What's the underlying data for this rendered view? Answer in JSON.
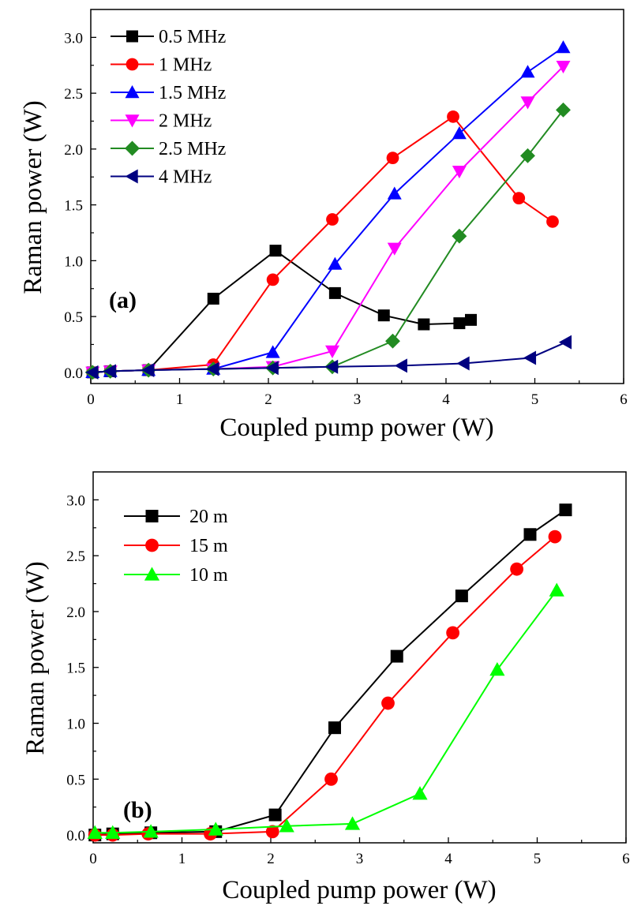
{
  "chart_data": [
    {
      "type": "line",
      "panel_label": "(a)",
      "xlabel": "Coupled pump power (W)",
      "ylabel": "Raman power (W)",
      "xlim": [
        0,
        6
      ],
      "ylim": [
        -0.1,
        3.25
      ],
      "xticks": [
        0,
        1,
        2,
        3,
        4,
        5,
        6
      ],
      "yticks": [
        0.0,
        0.5,
        1.0,
        1.5,
        2.0,
        2.5,
        3.0
      ],
      "legend_position": "top-left",
      "series": [
        {
          "name": "0.5 MHz",
          "color": "#000000",
          "marker": "square",
          "x": [
            0.02,
            0.22,
            0.65,
            1.38,
            2.08,
            2.75,
            3.3,
            3.75,
            4.15,
            4.28
          ],
          "y": [
            0.0,
            0.01,
            0.02,
            0.66,
            1.09,
            0.71,
            0.51,
            0.43,
            0.44,
            0.47
          ]
        },
        {
          "name": "1 MHz",
          "color": "#ff0000",
          "marker": "circle",
          "x": [
            0.02,
            0.22,
            0.65,
            1.38,
            2.05,
            2.72,
            3.4,
            4.08,
            4.82,
            5.2
          ],
          "y": [
            0.0,
            0.01,
            0.02,
            0.07,
            0.83,
            1.37,
            1.92,
            2.29,
            1.56,
            1.35
          ]
        },
        {
          "name": "1.5 MHz",
          "color": "#0000ff",
          "marker": "triangle-up",
          "x": [
            0.02,
            0.22,
            0.65,
            1.38,
            2.05,
            2.75,
            3.42,
            4.15,
            4.92,
            5.32
          ],
          "y": [
            0.0,
            0.01,
            0.02,
            0.03,
            0.18,
            0.97,
            1.6,
            2.14,
            2.69,
            2.91
          ]
        },
        {
          "name": "2 MHz",
          "color": "#ff00ff",
          "marker": "triangle-down",
          "x": [
            0.02,
            0.22,
            0.65,
            1.38,
            2.05,
            2.72,
            3.42,
            4.15,
            4.92,
            5.32
          ],
          "y": [
            0.0,
            0.01,
            0.02,
            0.03,
            0.05,
            0.19,
            1.11,
            1.8,
            2.42,
            2.74
          ]
        },
        {
          "name": "2.5 MHz",
          "color": "#228b22",
          "marker": "diamond",
          "x": [
            0.02,
            0.22,
            0.65,
            1.38,
            2.05,
            2.72,
            3.4,
            4.15,
            4.92,
            5.32
          ],
          "y": [
            0.0,
            0.01,
            0.02,
            0.03,
            0.04,
            0.05,
            0.28,
            1.22,
            1.94,
            2.35
          ]
        },
        {
          "name": "4 MHz",
          "color": "#000080",
          "marker": "triangle-left",
          "x": [
            0.02,
            0.22,
            0.65,
            1.38,
            2.05,
            2.72,
            3.5,
            4.2,
            4.95,
            5.35
          ],
          "y": [
            0.0,
            0.01,
            0.02,
            0.03,
            0.04,
            0.05,
            0.06,
            0.08,
            0.13,
            0.27
          ]
        }
      ]
    },
    {
      "type": "line",
      "panel_label": "(b)",
      "xlabel": "Coupled pump power (W)",
      "ylabel": "Raman power (W)",
      "xlim": [
        0,
        6
      ],
      "ylim": [
        -0.07,
        3.25
      ],
      "xticks": [
        0,
        1,
        2,
        3,
        4,
        5,
        6
      ],
      "yticks": [
        0.0,
        0.5,
        1.0,
        1.5,
        2.0,
        2.5,
        3.0
      ],
      "legend_position": "top-left",
      "series": [
        {
          "name": "20 m",
          "color": "#000000",
          "marker": "square",
          "x": [
            0.02,
            0.22,
            0.65,
            1.38,
            2.05,
            2.72,
            3.42,
            4.15,
            4.92,
            5.32
          ],
          "y": [
            0.0,
            0.01,
            0.02,
            0.03,
            0.18,
            0.96,
            1.6,
            2.14,
            2.69,
            2.91
          ]
        },
        {
          "name": "15 m",
          "color": "#ff0000",
          "marker": "circle",
          "x": [
            0.02,
            0.22,
            0.62,
            1.32,
            2.02,
            2.68,
            3.32,
            4.05,
            4.77,
            5.2
          ],
          "y": [
            0.0,
            0.0,
            0.01,
            0.01,
            0.03,
            0.5,
            1.18,
            1.81,
            2.38,
            2.67
          ]
        },
        {
          "name": "10 m",
          "color": "#00ff00",
          "marker": "triangle-up",
          "x": [
            0.02,
            0.22,
            0.65,
            1.38,
            2.18,
            2.92,
            3.68,
            4.55,
            5.22
          ],
          "y": [
            0.02,
            0.02,
            0.03,
            0.05,
            0.08,
            0.1,
            0.37,
            1.48,
            2.19
          ]
        }
      ]
    }
  ]
}
